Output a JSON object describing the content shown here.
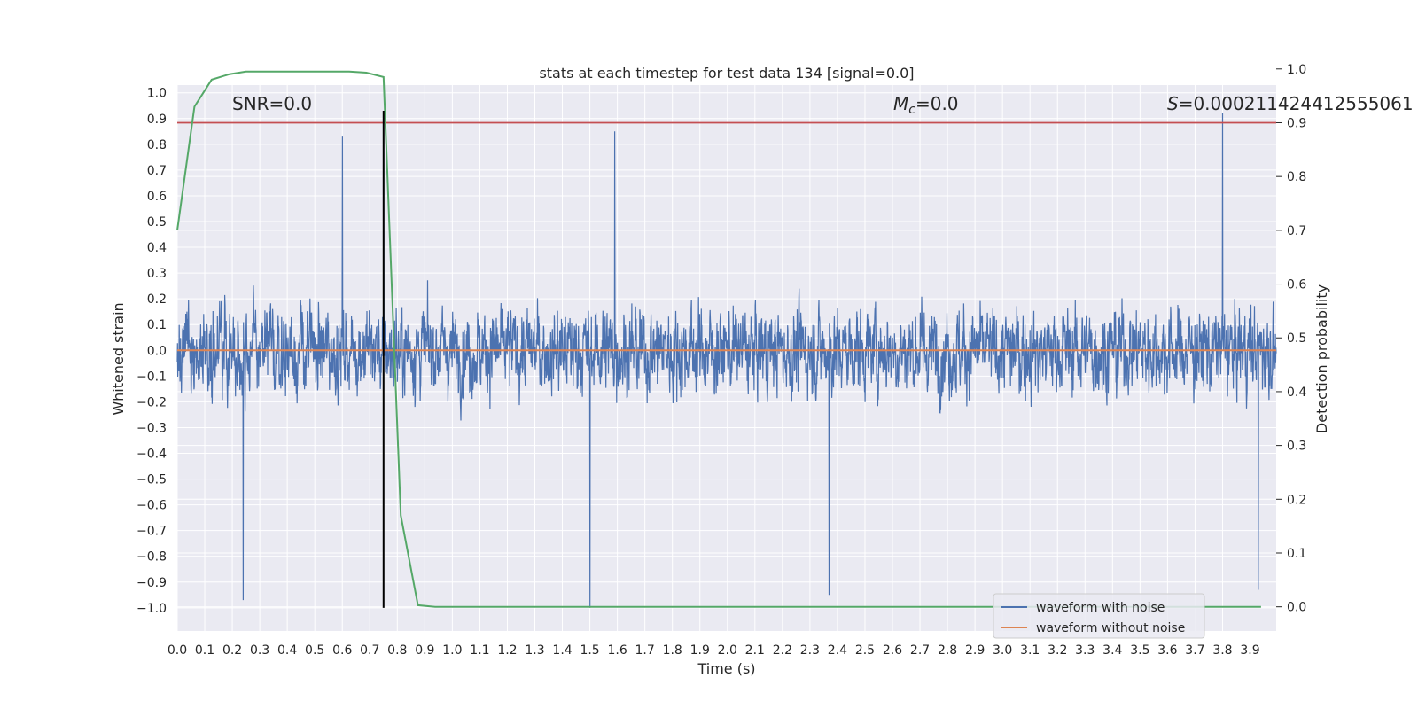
{
  "chart_data": {
    "type": "line",
    "title": "stats at each timestep for test data 134 [signal=0.0]",
    "xlabel": "Time (s)",
    "ylabel": "Whitened strain",
    "y2label": "Detection probability",
    "xlim": [
      0.0,
      3.995
    ],
    "ylim": [
      -1.09,
      1.03
    ],
    "y2lim": [
      -0.045,
      0.97
    ],
    "x_ticks": [
      "0.0",
      "0.1",
      "0.2",
      "0.3",
      "0.4",
      "0.5",
      "0.6",
      "0.7",
      "0.8",
      "0.9",
      "1.0",
      "1.1",
      "1.2",
      "1.3",
      "1.4",
      "1.5",
      "1.6",
      "1.7",
      "1.8",
      "1.9",
      "2.0",
      "2.1",
      "2.2",
      "2.3",
      "2.4",
      "2.5",
      "2.6",
      "2.7",
      "2.8",
      "2.9",
      "3.0",
      "3.1",
      "3.2",
      "3.3",
      "3.4",
      "3.5",
      "3.6",
      "3.7",
      "3.8",
      "3.9"
    ],
    "y_ticks": [
      "1.0",
      "0.9",
      "0.8",
      "0.7",
      "0.6",
      "0.5",
      "0.4",
      "0.3",
      "0.2",
      "0.1",
      "0.0",
      "−0.1",
      "−0.2",
      "−0.3",
      "−0.4",
      "−0.5",
      "−0.6",
      "−0.7",
      "−0.8",
      "−0.9",
      "−1.0"
    ],
    "y2_ticks": [
      "1.0",
      "0.9",
      "0.8",
      "0.7",
      "0.6",
      "0.5",
      "0.4",
      "0.3",
      "0.2",
      "0.1",
      "0.0"
    ],
    "annotations": {
      "snr": "SNR=0.0",
      "mc_symbol": "M",
      "mc_sub": "c",
      "mc_value": "=0.0",
      "s_symbol": "S",
      "s_value": "=0.0002114244125550​61"
    },
    "series": [
      {
        "name": "waveform with noise",
        "axis": "left",
        "color": "#4c72b0",
        "description": "dense noise trace, approx. range -1.0 to 0.92",
        "notable_peaks": [
          {
            "x": 3.8,
            "y": 0.92
          },
          {
            "x": 0.75,
            "y": 0.88
          },
          {
            "x": 1.59,
            "y": 0.85
          },
          {
            "x": 0.6,
            "y": 0.83
          },
          {
            "x": 1.5,
            "y": -1.0
          },
          {
            "x": 0.24,
            "y": -0.97
          },
          {
            "x": 3.93,
            "y": -0.93
          },
          {
            "x": 2.37,
            "y": -0.95
          }
        ]
      },
      {
        "name": "waveform without noise",
        "axis": "left",
        "color": "#dd8452",
        "x": [
          0.0,
          3.995
        ],
        "y": [
          0.0,
          0.0
        ]
      },
      {
        "axis": "right",
        "color": "#55a868",
        "x": [
          0.0,
          0.0625,
          0.125,
          0.1875,
          0.25,
          0.3125,
          0.375,
          0.4375,
          0.5,
          0.5625,
          0.625,
          0.6875,
          0.75,
          0.8125,
          0.875,
          0.9375,
          1.0,
          1.5,
          2.0,
          2.5,
          3.0,
          3.5,
          3.94
        ],
        "y": [
          0.7,
          0.93,
          0.98,
          0.99,
          0.995,
          0.995,
          0.995,
          0.995,
          0.995,
          0.995,
          0.995,
          0.993,
          0.985,
          0.17,
          0.003,
          0.0,
          0.0,
          0.0,
          0.0,
          0.0,
          0.0,
          0.0,
          0.0
        ]
      }
    ],
    "hlines": [
      {
        "axis": "right",
        "y": 0.9,
        "color": "#c44e52"
      }
    ],
    "vlines": [
      {
        "axis": "left",
        "x": 0.75,
        "ymin": -1.0,
        "ymax": 0.93,
        "color": "#000000"
      }
    ],
    "grid": true,
    "legend": {
      "position": "lower-right",
      "entries": [
        {
          "label": "waveform with noise",
          "color": "#4c72b0"
        },
        {
          "label": "waveform without noise",
          "color": "#dd8452"
        }
      ]
    },
    "colors": {
      "axes_bg": "#eaeaf2",
      "grid": "#ffffff",
      "noise": "#4c72b0",
      "clean": "#dd8452",
      "prob": "#55a868",
      "threshold": "#c44e52",
      "marker": "#000000"
    }
  }
}
